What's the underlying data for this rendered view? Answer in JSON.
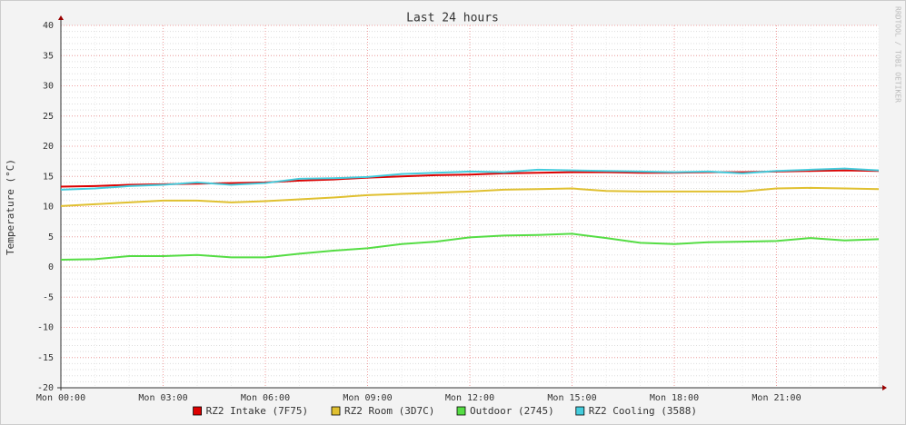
{
  "chart_data": {
    "type": "line",
    "title": "Last 24 hours",
    "y_label": "Temperature (°C)",
    "watermark": "RRDTOOL / TOBI OETIKER",
    "x": [
      0,
      1,
      2,
      3,
      4,
      5,
      6,
      7,
      8,
      9,
      10,
      11,
      12,
      13,
      14,
      15,
      16,
      17,
      18,
      19,
      20,
      21,
      22,
      23,
      24
    ],
    "xlim": [
      0,
      24
    ],
    "xticks": [
      {
        "value": 0,
        "label": "Mon 00:00"
      },
      {
        "value": 3,
        "label": "Mon 03:00"
      },
      {
        "value": 6,
        "label": "Mon 06:00"
      },
      {
        "value": 9,
        "label": "Mon 09:00"
      },
      {
        "value": 12,
        "label": "Mon 12:00"
      },
      {
        "value": 15,
        "label": "Mon 15:00"
      },
      {
        "value": 18,
        "label": "Mon 18:00"
      },
      {
        "value": 21,
        "label": "Mon 21:00"
      }
    ],
    "ylim": [
      -20,
      40
    ],
    "yticks": [
      -20,
      -15,
      -10,
      -5,
      0,
      5,
      10,
      15,
      20,
      25,
      30,
      35,
      40
    ],
    "grid": true,
    "series": [
      {
        "name": "RZ2 Intake (7F75)",
        "color": "#dd0000",
        "values": [
          13.3,
          13.4,
          13.6,
          13.7,
          13.8,
          13.9,
          14.0,
          14.3,
          14.5,
          14.8,
          15.0,
          15.2,
          15.3,
          15.5,
          15.6,
          15.7,
          15.7,
          15.6,
          15.6,
          15.7,
          15.7,
          15.8,
          15.9,
          16.0,
          15.9
        ]
      },
      {
        "name": "RZ2 Room (3D7C)",
        "color": "#e0c030",
        "values": [
          10.1,
          10.4,
          10.7,
          11.0,
          11.0,
          10.7,
          10.9,
          11.2,
          11.5,
          11.9,
          12.1,
          12.3,
          12.5,
          12.8,
          12.9,
          13.0,
          12.6,
          12.5,
          12.5,
          12.5,
          12.5,
          13.0,
          13.1,
          13.0,
          12.9
        ]
      },
      {
        "name": "Outdoor (2745)",
        "color": "#55dd44",
        "values": [
          1.2,
          1.3,
          1.8,
          1.8,
          2.0,
          1.6,
          1.6,
          2.2,
          2.7,
          3.1,
          3.8,
          4.2,
          4.9,
          5.2,
          5.3,
          5.5,
          4.8,
          4.0,
          3.8,
          4.1,
          4.2,
          4.3,
          4.8,
          4.4,
          4.6
        ]
      },
      {
        "name": "RZ2 Cooling (3588)",
        "color": "#44ccdd",
        "values": [
          12.8,
          13.0,
          13.4,
          13.6,
          14.0,
          13.6,
          13.9,
          14.6,
          14.7,
          14.9,
          15.4,
          15.6,
          15.8,
          15.7,
          16.1,
          16.0,
          15.9,
          15.8,
          15.7,
          15.8,
          15.5,
          15.9,
          16.1,
          16.3,
          16.0
        ]
      }
    ]
  }
}
